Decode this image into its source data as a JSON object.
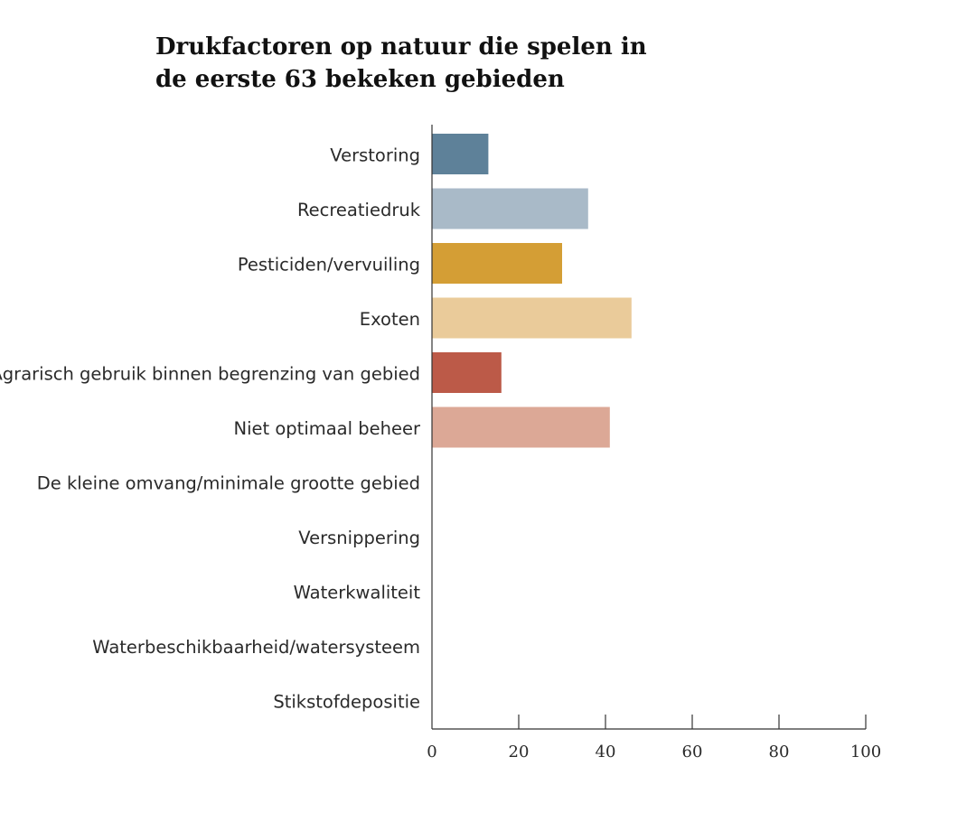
{
  "chart_data": {
    "type": "bar",
    "orientation": "horizontal",
    "title_lines": [
      "Drukfactoren op natuur die spelen in",
      "de eerste 63 bekeken gebieden"
    ],
    "categories": [
      "Verstoring",
      "Recreatiedruk",
      "Pesticiden/vervuiling",
      "Exoten",
      "Agrarisch gebruik binnen begrenzing van gebied",
      "Niet optimaal beheer",
      "De kleine omvang/minimale grootte gebied",
      "Versnippering",
      "Waterkwaliteit",
      "Waterbeschikbaarheid/watersysteem",
      "Stikstofdepositie"
    ],
    "values": [
      13,
      36,
      30,
      46,
      16,
      41,
      null,
      null,
      null,
      null,
      null
    ],
    "colors": [
      "#5e8199",
      "#a9bac8",
      "#d49e35",
      "#eacb9a",
      "#bc5a48",
      "#dca896",
      null,
      null,
      null,
      null,
      null
    ],
    "xlim": [
      0,
      100
    ],
    "xticks": [
      0,
      20,
      40,
      60,
      80,
      100
    ],
    "grid": false,
    "legend": "none"
  }
}
